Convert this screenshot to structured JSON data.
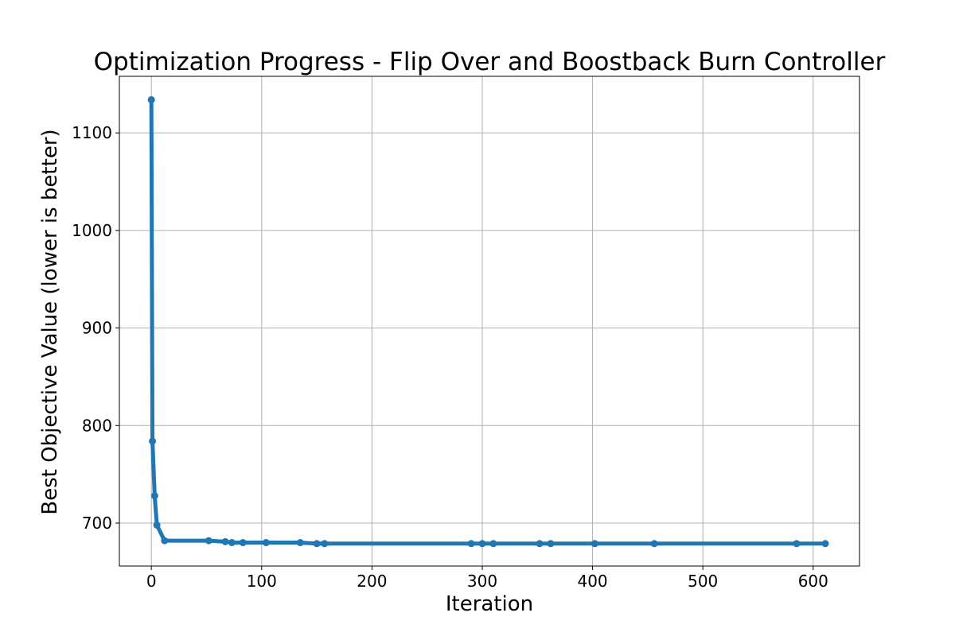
{
  "chart_data": {
    "type": "line",
    "title": "Optimization Progress - Flip Over and Boostback Burn Controller",
    "xlabel": "Iteration",
    "ylabel": "Best Objective Value (lower is better)",
    "xlim": [
      -29,
      642
    ],
    "ylim": [
      656,
      1158
    ],
    "xticks": [
      0,
      100,
      200,
      300,
      400,
      500,
      600
    ],
    "yticks": [
      700,
      800,
      900,
      1000,
      1100
    ],
    "grid": true,
    "line_color": "#1f77b4",
    "series": [
      {
        "x": [
          0,
          1,
          3,
          5,
          12,
          52,
          67,
          73,
          83,
          104,
          135,
          150,
          157,
          290,
          300,
          310,
          352,
          362,
          402,
          456,
          585,
          611
        ],
        "y": [
          1134,
          784,
          728,
          698,
          682,
          682,
          681,
          680,
          680,
          680,
          680,
          679,
          679,
          679,
          679,
          679,
          679,
          679,
          679,
          679,
          679,
          679
        ]
      }
    ]
  }
}
